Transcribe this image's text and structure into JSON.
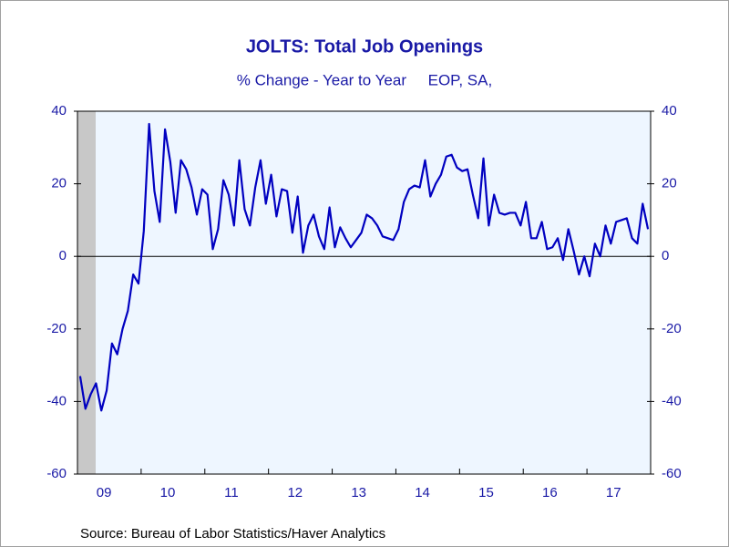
{
  "chart_data": {
    "type": "line",
    "title": "JOLTS: Total Job Openings",
    "subtitle": "% Change - Year to Year     EOP, SA,",
    "source": "Source:  Bureau of Labor Statistics/Haver Analytics",
    "categories": [
      null,
      null,
      null,
      null,
      null,
      "09",
      null,
      null,
      null,
      null,
      null,
      null,
      null,
      null,
      null,
      null,
      null,
      "10",
      null,
      null,
      null,
      null,
      null,
      null,
      null,
      null,
      null,
      null,
      null,
      "11",
      null,
      null,
      null,
      null,
      null,
      null,
      null,
      null,
      null,
      null,
      null,
      "12",
      null,
      null,
      null,
      null,
      null,
      null,
      null,
      null,
      null,
      null,
      null,
      "13",
      null,
      null,
      null,
      null,
      null,
      null,
      null,
      null,
      null,
      null,
      null,
      "14",
      null,
      null,
      null,
      null,
      null,
      null,
      null,
      null,
      null,
      null,
      null,
      "15",
      null,
      null,
      null,
      null,
      null,
      null,
      null,
      null,
      null,
      null,
      null,
      "16",
      null,
      null,
      null,
      null,
      null,
      null,
      null,
      null,
      null,
      null,
      null,
      "17",
      null,
      null,
      null,
      null,
      null,
      null
    ],
    "series": [
      {
        "color": "#0000c0",
        "values": [
          -33,
          -42,
          -38,
          -35,
          -42.5,
          -37,
          -24,
          -27,
          -20,
          -15,
          -5,
          -7.5,
          7,
          36.5,
          18,
          9.5,
          35,
          26,
          12,
          26.5,
          24,
          19,
          11.5,
          18.5,
          17,
          2,
          7.5,
          21,
          17,
          8.5,
          26.5,
          13,
          8.5,
          19,
          26.5,
          14.5,
          22.5,
          11,
          18.5,
          18,
          6.5,
          16.5,
          1,
          8.5,
          11.5,
          5.5,
          2,
          13.5,
          2.5,
          8,
          5,
          2.5,
          4.5,
          6.5,
          11.5,
          10.5,
          8.5,
          5.5,
          5,
          4.5,
          7.5,
          15,
          18.5,
          19.5,
          19,
          26.5,
          16.5,
          20,
          22.5,
          27.5,
          28,
          24.5,
          23.5,
          24,
          17,
          10.5,
          27,
          8.5,
          17,
          12,
          11.5,
          12,
          12,
          8.5,
          15,
          5,
          5,
          9.5,
          2,
          2.5,
          5,
          -1,
          7.5,
          1.5,
          -5,
          0,
          -5.5,
          3.5,
          0,
          8.5,
          3.5,
          9.5,
          10,
          10.5,
          5,
          3.5,
          14.5,
          7.5
        ]
      }
    ],
    "ylim": [
      -60,
      40
    ],
    "yticks": [
      40,
      20,
      0,
      -20,
      -40,
      -60
    ],
    "y2lim": [
      -60,
      40
    ],
    "y2ticks": [
      40,
      20,
      0,
      -20,
      -40,
      -60
    ]
  }
}
